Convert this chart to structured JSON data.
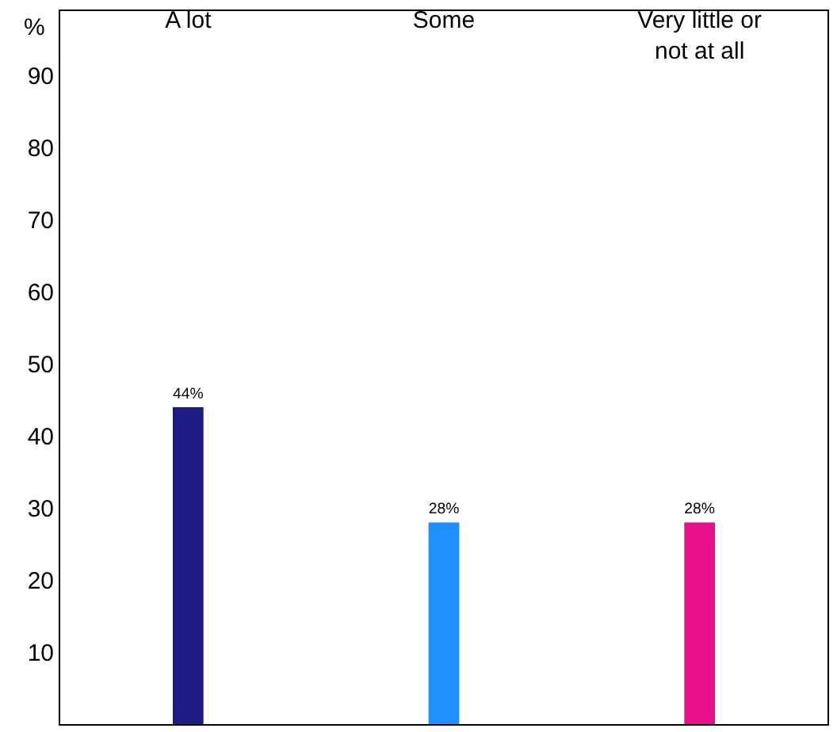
{
  "chart_data": {
    "type": "bar",
    "ylabel": "%",
    "categories": [
      "A lot",
      "Some",
      "Very little or not at all"
    ],
    "values": [
      44,
      28,
      28
    ],
    "colors": [
      "#1c1c84",
      "#1e90ff",
      "#e8108a"
    ],
    "ylim": [
      0,
      99
    ],
    "yticks": [
      10,
      20,
      30,
      40,
      50,
      60,
      70,
      80,
      90
    ],
    "value_labels": [
      "44%",
      "28%",
      "28%"
    ]
  }
}
